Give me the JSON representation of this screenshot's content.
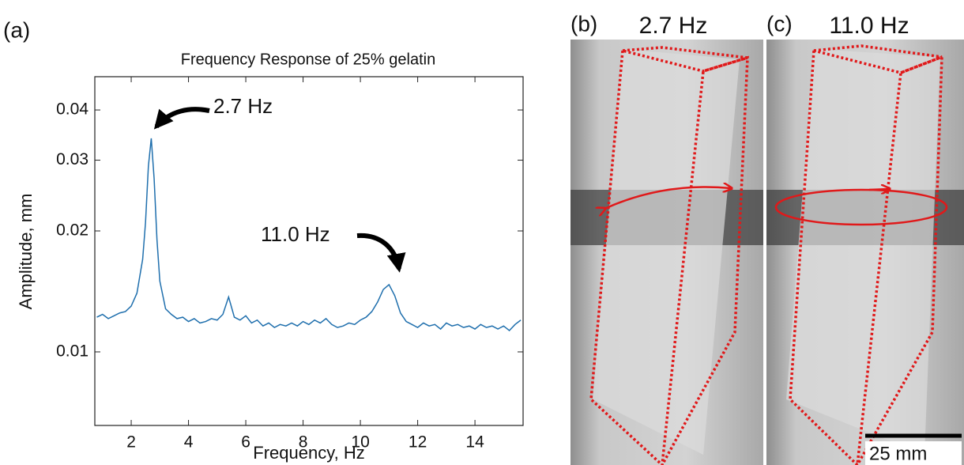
{
  "chart_data": {
    "type": "line",
    "title": "Frequency Response of 25% gelatin",
    "x_label": "Frequency, Hz",
    "y_label": "Amplitude, mm",
    "xlim": [
      0.73,
      15.68
    ],
    "xticks": [
      2,
      4,
      6,
      8,
      10,
      12,
      14
    ],
    "ylim": [
      0.00656,
      0.0484
    ],
    "yticks": [
      0.01,
      0.02,
      0.03,
      0.04
    ],
    "log_y": true,
    "grid": false,
    "x": [
      0.8,
      1.0,
      1.2,
      1.4,
      1.6,
      1.8,
      2.0,
      2.2,
      2.4,
      2.5,
      2.6,
      2.7,
      2.8,
      2.9,
      3.0,
      3.2,
      3.4,
      3.6,
      3.8,
      4.0,
      4.2,
      4.4,
      4.6,
      4.8,
      5.0,
      5.2,
      5.4,
      5.6,
      5.8,
      6.0,
      6.2,
      6.4,
      6.6,
      6.8,
      7.0,
      7.2,
      7.4,
      7.6,
      7.8,
      8.0,
      8.2,
      8.4,
      8.6,
      8.8,
      9.0,
      9.2,
      9.4,
      9.6,
      9.8,
      10.0,
      10.2,
      10.4,
      10.6,
      10.8,
      11.0,
      11.2,
      11.4,
      11.6,
      11.8,
      12.0,
      12.2,
      12.4,
      12.6,
      12.8,
      13.0,
      13.2,
      13.4,
      13.6,
      13.8,
      14.0,
      14.2,
      14.4,
      14.6,
      14.8,
      15.0,
      15.2,
      15.4,
      15.6
    ],
    "series": [
      {
        "color": "#1f6fad",
        "values": [
          0.0122,
          0.0124,
          0.0121,
          0.0123,
          0.0125,
          0.0126,
          0.013,
          0.014,
          0.017,
          0.021,
          0.029,
          0.034,
          0.027,
          0.019,
          0.015,
          0.0128,
          0.0124,
          0.0121,
          0.0122,
          0.0119,
          0.0121,
          0.0118,
          0.0119,
          0.0121,
          0.012,
          0.0124,
          0.0137,
          0.0122,
          0.012,
          0.0123,
          0.0118,
          0.012,
          0.0116,
          0.0118,
          0.0115,
          0.0117,
          0.0116,
          0.0118,
          0.0116,
          0.0119,
          0.0117,
          0.012,
          0.0118,
          0.0121,
          0.0117,
          0.0115,
          0.0116,
          0.0118,
          0.0117,
          0.012,
          0.0122,
          0.0126,
          0.0133,
          0.0143,
          0.0147,
          0.0138,
          0.0125,
          0.0119,
          0.0117,
          0.0115,
          0.0118,
          0.0116,
          0.0117,
          0.0114,
          0.0118,
          0.0116,
          0.0117,
          0.0115,
          0.0116,
          0.0114,
          0.0117,
          0.0115,
          0.0116,
          0.0114,
          0.0116,
          0.0113,
          0.0117,
          0.012
        ]
      }
    ],
    "annotations": [
      "2.7 Hz",
      "11.0 Hz"
    ]
  },
  "panels": {
    "a": "(a)",
    "b": "(b)",
    "b_title": "2.7 Hz",
    "c": "(c)",
    "c_title": "11.0 Hz",
    "scale_bar": "25 mm"
  }
}
